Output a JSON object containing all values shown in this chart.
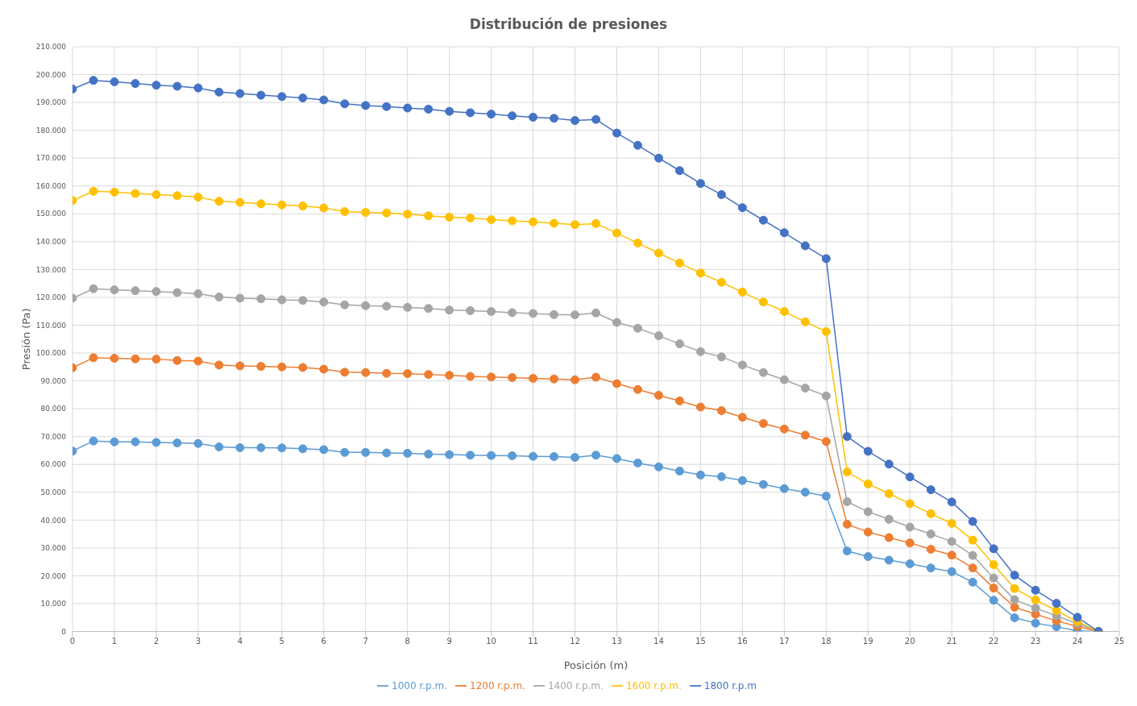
{
  "chart_data": {
    "type": "line",
    "title": "Distribución de presiones",
    "xlabel": "Posición (m)",
    "ylabel": "Presión (Pa)",
    "x": [
      0,
      0.5,
      1,
      1.5,
      2,
      2.5,
      3,
      3.5,
      4,
      4.5,
      5,
      5.5,
      6,
      6.5,
      7,
      7.5,
      8,
      8.5,
      9,
      9.5,
      10,
      10.5,
      11,
      11.5,
      12,
      12.5,
      13,
      13.5,
      14,
      14.5,
      15,
      15.5,
      16,
      16.5,
      17,
      17.5,
      18,
      18.5,
      19,
      19.5,
      20,
      20.5,
      21,
      21.5,
      22,
      22.5,
      23,
      23.5,
      24,
      24.5
    ],
    "series": [
      {
        "name": "1000 r.p.m.",
        "color": "#5b9bd5",
        "values": [
          64800,
          68400,
          68100,
          68100,
          67900,
          67700,
          67500,
          66300,
          66000,
          66000,
          65900,
          65600,
          65300,
          64300,
          64300,
          64100,
          64000,
          63700,
          63500,
          63300,
          63200,
          63100,
          62900,
          62800,
          62500,
          63300,
          62100,
          60500,
          59100,
          57600,
          56200,
          55600,
          54200,
          52800,
          51300,
          50000,
          48600,
          28900,
          26900,
          25600,
          24300,
          22800,
          21500,
          17700,
          11200,
          4900,
          3000,
          1700,
          200,
          0
        ]
      },
      {
        "name": "1200 r.p.m.",
        "color": "#ed7d31",
        "values": [
          94700,
          98300,
          98100,
          97900,
          97800,
          97300,
          97100,
          95700,
          95400,
          95200,
          95000,
          94800,
          94200,
          93100,
          93000,
          92700,
          92600,
          92300,
          92000,
          91600,
          91400,
          91200,
          90900,
          90700,
          90400,
          91300,
          89000,
          86900,
          84800,
          82800,
          80600,
          79300,
          76900,
          74700,
          72700,
          70500,
          68200,
          38500,
          35700,
          33700,
          31800,
          29500,
          27400,
          22800,
          15600,
          8700,
          6200,
          3800,
          1800,
          0
        ]
      },
      {
        "name": "1400 r.p.m.",
        "color": "#a5a5a5",
        "values": [
          119700,
          123100,
          122700,
          122400,
          122100,
          121700,
          121300,
          120100,
          119700,
          119500,
          119100,
          118900,
          118300,
          117300,
          117000,
          116800,
          116400,
          116000,
          115400,
          115200,
          114900,
          114500,
          114200,
          113800,
          113700,
          114400,
          111000,
          108900,
          106200,
          103300,
          100500,
          98600,
          95700,
          93000,
          90400,
          87400,
          84600,
          46600,
          43000,
          40300,
          37500,
          35000,
          32300,
          27300,
          19200,
          11400,
          8400,
          5600,
          2800,
          0
        ]
      },
      {
        "name": "1600 r.p.m.",
        "color": "#ffc000",
        "values": [
          154800,
          158100,
          157800,
          157300,
          156900,
          156500,
          156000,
          154500,
          154100,
          153600,
          153200,
          152800,
          152100,
          150800,
          150500,
          150300,
          149900,
          149300,
          148800,
          148500,
          147900,
          147500,
          147100,
          146600,
          146100,
          146500,
          143100,
          139500,
          135900,
          132300,
          128700,
          125400,
          121900,
          118300,
          114900,
          111200,
          107700,
          57300,
          53000,
          49500,
          45900,
          42300,
          38800,
          32800,
          24000,
          15400,
          11300,
          7500,
          3500,
          0
        ]
      },
      {
        "name": "1800 r.p.m",
        "color": "#4472c4",
        "values": [
          194800,
          197900,
          197400,
          196800,
          196200,
          195800,
          195200,
          193700,
          193200,
          192600,
          192100,
          191600,
          190900,
          189500,
          188900,
          188500,
          188000,
          187600,
          186800,
          186300,
          185800,
          185200,
          184700,
          184300,
          183500,
          183900,
          179000,
          174600,
          170000,
          165500,
          160900,
          156900,
          152200,
          147700,
          143200,
          138500,
          133900,
          70000,
          64700,
          60100,
          55500,
          50900,
          46500,
          39500,
          29700,
          20200,
          14800,
          10100,
          5100,
          0
        ]
      }
    ],
    "xlim": [
      0,
      25
    ],
    "xticks": [
      0,
      1,
      2,
      3,
      4,
      5,
      6,
      7,
      8,
      9,
      10,
      11,
      12,
      13,
      14,
      15,
      16,
      17,
      18,
      19,
      20,
      21,
      22,
      23,
      24,
      25
    ],
    "ylim": [
      0,
      210000
    ],
    "yticks": [
      0,
      {
        "value": 10000,
        "label": "10.000"
      },
      {
        "value": 20000,
        "label": "20.000"
      },
      {
        "value": 30000,
        "label": "30.000"
      },
      {
        "value": 40000,
        "label": "40.000"
      },
      {
        "value": 50000,
        "label": "50.000"
      },
      {
        "value": 60000,
        "label": "60.000"
      },
      {
        "value": 70000,
        "label": "70.000"
      },
      {
        "value": 80000,
        "label": "80.000"
      },
      {
        "value": 90000,
        "label": "90.000"
      },
      {
        "value": 100000,
        "label": "100.000"
      },
      {
        "value": 110000,
        "label": "110.000"
      },
      {
        "value": 120000,
        "label": "120.000"
      },
      {
        "value": 130000,
        "label": "130.000"
      },
      {
        "value": 140000,
        "label": "140.000"
      },
      {
        "value": 150000,
        "label": "150.000"
      },
      {
        "value": 160000,
        "label": "160.000"
      },
      {
        "value": 170000,
        "label": "170.000"
      },
      {
        "value": 180000,
        "label": "180.000"
      },
      {
        "value": 190000,
        "label": "190.000"
      },
      {
        "value": 200000,
        "label": "200.000"
      },
      {
        "value": 210000,
        "label": "210.000"
      }
    ],
    "grid": true,
    "legend": "bottom",
    "marker": "circle",
    "line_style": "solid"
  }
}
